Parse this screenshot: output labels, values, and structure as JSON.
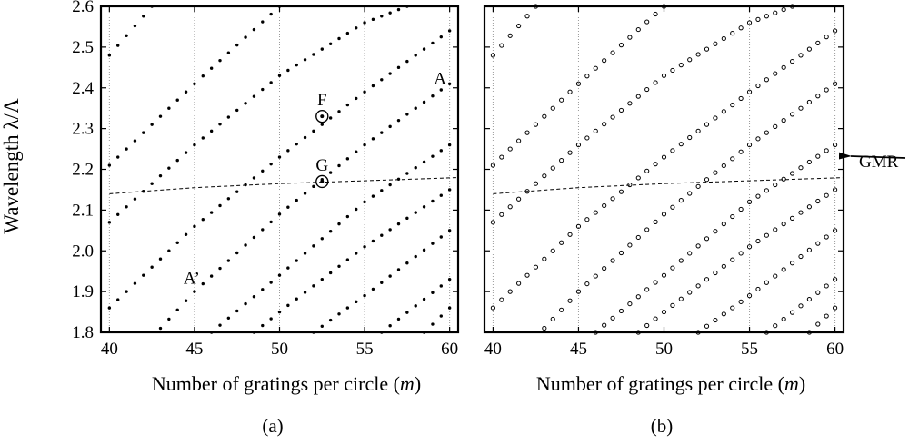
{
  "ylabel": "Wavelength  λ/Λ",
  "panel_a": {
    "xlabel_main": "Number of gratings per circle (",
    "xlabel_var": "m",
    "xlabel_close": ")",
    "caption": "(a)"
  },
  "panel_b": {
    "xlabel_main": "Number of gratings per circle (",
    "xlabel_var": "m",
    "xlabel_close": ")",
    "caption": "(b)"
  },
  "annotations": {
    "A": "A",
    "A_prime": "A’",
    "F": "F",
    "G": "G",
    "GMR": "GMR"
  },
  "chart_data": [
    {
      "type": "scatter",
      "panel": "a",
      "marker": "filled-dot",
      "xlim": [
        39.5,
        60.5
      ],
      "ylim": [
        1.8,
        2.6
      ],
      "x_ticks": [
        40,
        45,
        50,
        55,
        60
      ],
      "y_ticks": [
        1.8,
        1.9,
        2.0,
        2.1,
        2.2,
        2.3,
        2.4,
        2.5,
        2.6
      ],
      "y_tick_labels": [
        "1.8",
        "1.9",
        "2.0",
        "2.1",
        "2.2",
        "2.3",
        "2.4",
        "2.5",
        "2.6"
      ],
      "x_tick_labels": [
        "40",
        "45",
        "50",
        "55",
        "60"
      ],
      "grid": "vertical dotted at x ticks",
      "series": [
        {
          "x": [
            40,
            42.5
          ],
          "y": [
            2.48,
            2.6
          ]
        },
        {
          "x": [
            40,
            45,
            50
          ],
          "y": [
            2.21,
            2.41,
            2.6
          ]
        },
        {
          "x": [
            40,
            45,
            50,
            55,
            57.5
          ],
          "y": [
            2.07,
            2.26,
            2.43,
            2.56,
            2.6
          ]
        },
        {
          "x": [
            40,
            45,
            50,
            55,
            60
          ],
          "y": [
            1.86,
            2.06,
            2.23,
            2.39,
            2.54
          ]
        },
        {
          "x": [
            43,
            45,
            50,
            55,
            60
          ],
          "y": [
            1.81,
            1.9,
            2.09,
            2.26,
            2.41
          ]
        },
        {
          "x": [
            46,
            50,
            55,
            60
          ],
          "y": [
            1.8,
            1.94,
            2.12,
            2.26
          ]
        },
        {
          "x": [
            48.5,
            50,
            55,
            60
          ],
          "y": [
            1.8,
            1.85,
            2.01,
            2.15
          ]
        },
        {
          "x": [
            52,
            55,
            60
          ],
          "y": [
            1.8,
            1.89,
            2.05
          ]
        },
        {
          "x": [
            56,
            60
          ],
          "y": [
            1.8,
            1.93
          ]
        },
        {
          "x": [
            58.5,
            60
          ],
          "y": [
            1.8,
            1.86
          ]
        }
      ],
      "gmr_curve": {
        "x": [
          40,
          45,
          50,
          55,
          60
        ],
        "y": [
          2.14,
          2.155,
          2.165,
          2.172,
          2.179
        ]
      },
      "marked_points": [
        {
          "label": "F",
          "x": 52.5,
          "y": 2.33
        },
        {
          "label": "G",
          "x": 52.5,
          "y": 2.17
        }
      ],
      "text_annotations": [
        {
          "label": "A",
          "x": 59.5,
          "y": 2.425
        },
        {
          "label": "A’",
          "x": 45,
          "y": 1.935
        }
      ]
    },
    {
      "type": "scatter",
      "panel": "b",
      "marker": "open-circle",
      "xlim": [
        39.5,
        60.5
      ],
      "ylim": [
        1.8,
        2.6
      ],
      "x_ticks": [
        40,
        45,
        50,
        55,
        60
      ],
      "x_tick_labels": [
        "40",
        "45",
        "50",
        "55",
        "60"
      ],
      "grid": "vertical dotted at x ticks",
      "series": [
        {
          "x": [
            40,
            42.5
          ],
          "y": [
            2.48,
            2.6
          ]
        },
        {
          "x": [
            40,
            45,
            50
          ],
          "y": [
            2.21,
            2.41,
            2.6
          ]
        },
        {
          "x": [
            40,
            45,
            50,
            55,
            57.5
          ],
          "y": [
            2.07,
            2.26,
            2.43,
            2.56,
            2.6
          ]
        },
        {
          "x": [
            40,
            45,
            50,
            55,
            60
          ],
          "y": [
            1.86,
            2.06,
            2.23,
            2.39,
            2.54
          ]
        },
        {
          "x": [
            43,
            45,
            50,
            55,
            60
          ],
          "y": [
            1.81,
            1.9,
            2.09,
            2.26,
            2.41
          ]
        },
        {
          "x": [
            46,
            50,
            55,
            60
          ],
          "y": [
            1.8,
            1.94,
            2.12,
            2.26
          ]
        },
        {
          "x": [
            48.5,
            50,
            55,
            60
          ],
          "y": [
            1.8,
            1.85,
            2.01,
            2.15
          ]
        },
        {
          "x": [
            52,
            55,
            60
          ],
          "y": [
            1.8,
            1.89,
            2.05
          ]
        },
        {
          "x": [
            56,
            60
          ],
          "y": [
            1.8,
            1.93
          ]
        },
        {
          "x": [
            58.5,
            60
          ],
          "y": [
            1.8,
            1.86
          ]
        }
      ],
      "gmr_curve": {
        "x": [
          40,
          45,
          50,
          55,
          60
        ],
        "y": [
          2.14,
          2.155,
          2.165,
          2.172,
          2.179
        ]
      }
    }
  ]
}
